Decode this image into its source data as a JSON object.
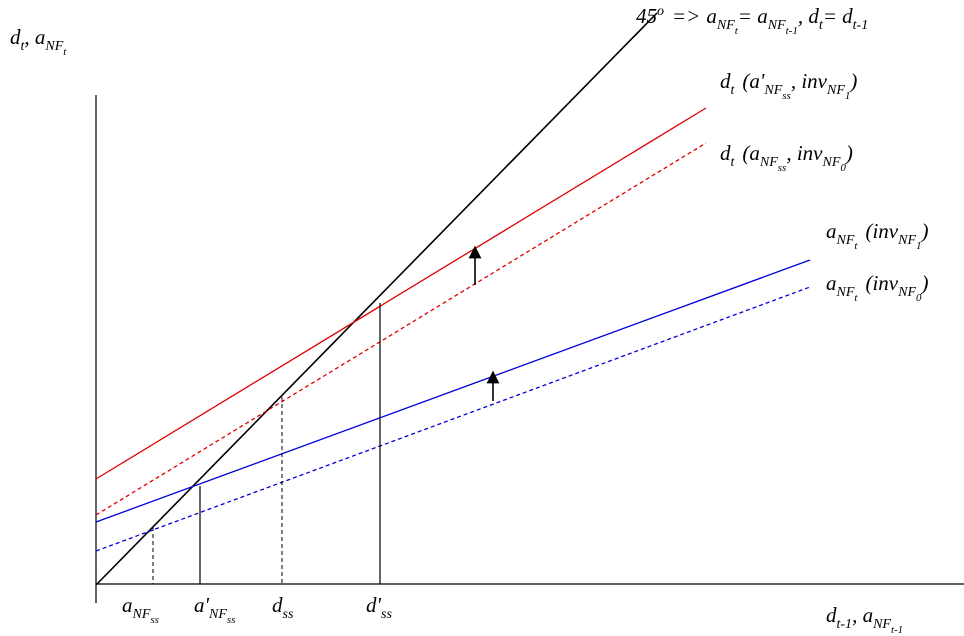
{
  "axes": {
    "y_label": {
      "main": "d",
      "main_sub": "t",
      "sep": ", a",
      "sub": "NF",
      "subsub": "t"
    },
    "x_label": {
      "main": "d",
      "main_sub": "t-1",
      "sep": ", a",
      "sub": "NF",
      "subsub": "t-1"
    }
  },
  "lines": {
    "forty_five": {
      "color": "#000000",
      "label": {
        "deg": "45",
        "arrow": "=>",
        "a": "a",
        "nf": "NF",
        "t": "t",
        "eq": "= a",
        "nf2": "NF",
        "t1": "t-1",
        "comma": ", d",
        "dt": "t",
        "eq2": "= d",
        "dt1": "t-1"
      }
    },
    "d_new": {
      "color": "#e00000",
      "style": "solid",
      "label": {
        "d": "d",
        "t": "t",
        "open": "(a'",
        "nf": "NF",
        "ss": "ss",
        "comma": ", inv",
        "inv_nf": "NF",
        "inv_sub": "1",
        "close": ")"
      }
    },
    "d_old": {
      "color": "#e00000",
      "style": "dashed",
      "label": {
        "d": "d",
        "t": "t",
        "open": "(a",
        "nf": "NF",
        "ss": "ss",
        "comma": ", inv",
        "inv_nf": "NF",
        "inv_sub": "0",
        "close": ")"
      }
    },
    "a_new": {
      "color": "#0000dd",
      "style": "solid",
      "label": {
        "a": "a",
        "nf": "NF",
        "t": "t",
        "open": "(inv",
        "inv_nf": "NF",
        "inv_sub": "1",
        "close": ")"
      }
    },
    "a_old": {
      "color": "#0000dd",
      "style": "dashed",
      "label": {
        "a": "a",
        "nf": "NF",
        "t": "t",
        "open": "(inv",
        "inv_nf": "NF",
        "inv_sub": "0",
        "close": ")"
      }
    }
  },
  "x_ticks": [
    {
      "main": "a",
      "sub": "NF",
      "subsub": "ss"
    },
    {
      "main": "a'",
      "sub": "NF",
      "subsub": "ss"
    },
    {
      "main": "d",
      "sub": "ss",
      "subsub": ""
    },
    {
      "main": "d'",
      "sub": "ss",
      "subsub": ""
    }
  ]
}
